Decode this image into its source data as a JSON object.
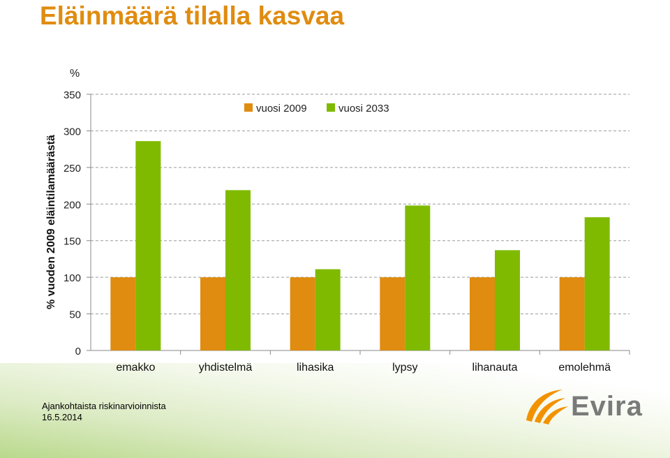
{
  "slide": {
    "title": "Eläinmäärä tilalla kasvaa",
    "footer_line1": "Ajankohtaista riskinarvioinnista",
    "footer_line2": "16.5.2014",
    "logo_text": "Evira"
  },
  "chart_data": {
    "type": "bar",
    "ylabel": "% vuoden 2009 eläintilamäärästä",
    "yunit": "%",
    "ylim": [
      0,
      350
    ],
    "yticks": [
      0,
      50,
      100,
      150,
      200,
      250,
      300,
      350
    ],
    "grid": true,
    "legend_position": "top-center",
    "categories": [
      "emakko",
      "yhdistelmä",
      "lihasika",
      "lypsy",
      "lihanauta",
      "emolehmä"
    ],
    "series": [
      {
        "name": "vuosi 2009",
        "color": "#e08c10",
        "values": [
          100,
          100,
          100,
          100,
          100,
          100
        ]
      },
      {
        "name": "vuosi 2033",
        "color": "#7fba00",
        "values": [
          286,
          219,
          111,
          198,
          137,
          182
        ]
      }
    ]
  },
  "colors": {
    "title": "#e08c10",
    "orange": "#e08c10",
    "green": "#7fba00",
    "logo_orange": "#f39200",
    "logo_gray": "#7a7a7a"
  }
}
